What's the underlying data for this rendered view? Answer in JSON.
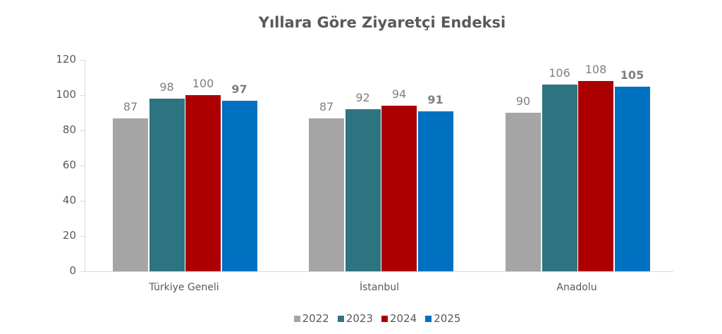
{
  "chart_data": {
    "type": "bar",
    "title": "Yıllara Göre Ziyaretçi Endeksi",
    "xlabel": "",
    "ylabel": "",
    "ylim": [
      0,
      120
    ],
    "yticks": [
      0,
      20,
      40,
      60,
      80,
      100,
      120
    ],
    "grid": false,
    "legend_position": "bottom",
    "categories": [
      "Türkiye Geneli",
      "İstanbul",
      "Anadolu"
    ],
    "series": [
      {
        "name": "2022",
        "color": "#a5a5a5",
        "values": [
          87,
          87,
          90
        ],
        "labels": [
          "87",
          "87",
          "90"
        ],
        "bold_labels": false
      },
      {
        "name": "2023",
        "color": "#2e7480",
        "values": [
          98,
          92,
          106
        ],
        "labels": [
          "98",
          "92",
          "106"
        ],
        "bold_labels": false
      },
      {
        "name": "2024",
        "color": "#ac0000",
        "values": [
          100,
          94,
          108
        ],
        "labels": [
          "100",
          "94",
          "108"
        ],
        "bold_labels": false
      },
      {
        "name": "2025",
        "color": "#0070c0",
        "values": [
          97,
          91,
          105
        ],
        "labels": [
          "97",
          "91",
          "105"
        ],
        "bold_labels": true
      }
    ]
  },
  "title": "Yıllara Göre Ziyaretçi Endeksi",
  "yaxis": {
    "ticks": [
      "0",
      "20",
      "40",
      "60",
      "80",
      "100",
      "120"
    ]
  },
  "xaxis": {
    "categories": [
      "Türkiye Geneli",
      "İstanbul",
      "Anadolu"
    ]
  },
  "legend": [
    "2022",
    "2023",
    "2024",
    "2025"
  ]
}
